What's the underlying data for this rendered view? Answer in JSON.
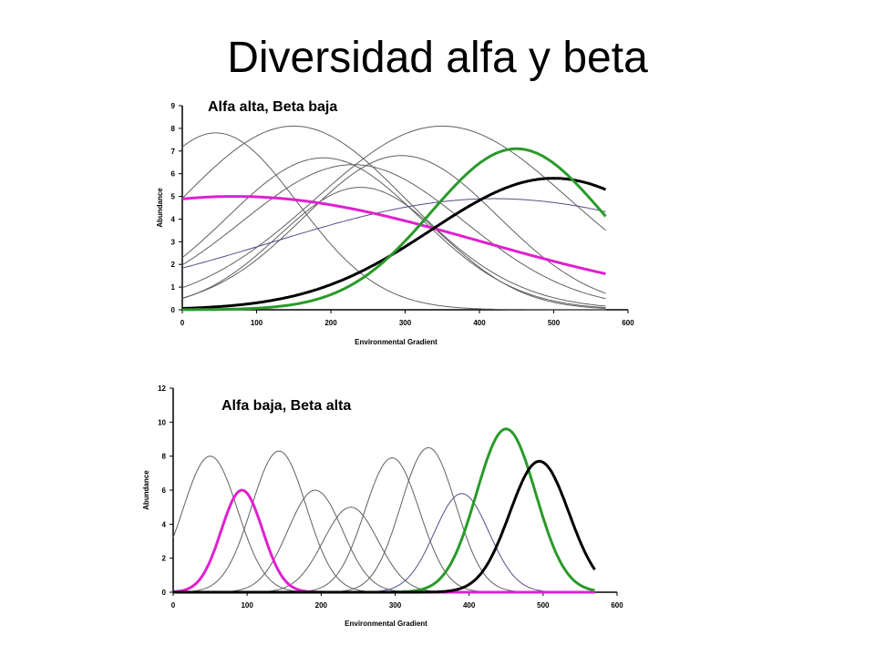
{
  "page": {
    "title": "Diversidad alfa y beta"
  },
  "chart_data": [
    {
      "type": "line",
      "annotation": "Alfa alta, Beta baja",
      "xlabel": "Environmental Gradient",
      "ylabel": "Abundance",
      "xlim": [
        0,
        600
      ],
      "ylim": [
        0,
        9
      ],
      "xticks": [
        "0",
        "100",
        "200",
        "300",
        "400",
        "500",
        "600"
      ],
      "yticks": [
        "0",
        "1",
        "2",
        "3",
        "4",
        "5",
        "6",
        "7",
        "8",
        "9"
      ],
      "grid": false,
      "series": [
        {
          "peak_x": 45,
          "peak_y": 7.8,
          "sd": 110,
          "color": "#606060",
          "emphasis": false
        },
        {
          "peak_x": 150,
          "peak_y": 8.1,
          "sd": 150,
          "color": "#606060",
          "emphasis": false
        },
        {
          "peak_x": 190,
          "peak_y": 6.7,
          "sd": 130,
          "color": "#606060",
          "emphasis": false
        },
        {
          "peak_x": 230,
          "peak_y": 6.4,
          "sd": 150,
          "color": "#606060",
          "emphasis": false
        },
        {
          "peak_x": 240,
          "peak_y": 5.4,
          "sd": 110,
          "color": "#606060",
          "emphasis": false
        },
        {
          "peak_x": 295,
          "peak_y": 6.8,
          "sd": 130,
          "color": "#606060",
          "emphasis": false
        },
        {
          "peak_x": 350,
          "peak_y": 8.1,
          "sd": 170,
          "color": "#606060",
          "emphasis": false
        },
        {
          "peak_x": 420,
          "peak_y": 4.9,
          "sd": 300,
          "color": "#5a4a8a",
          "emphasis": false
        },
        {
          "peak_x": 70,
          "peak_y": 5.0,
          "sd": 330,
          "color": "#e020d0",
          "emphasis": true
        },
        {
          "peak_x": 500,
          "peak_y": 5.8,
          "sd": 165,
          "color": "#000000",
          "emphasis": true
        },
        {
          "peak_x": 450,
          "peak_y": 7.1,
          "sd": 115,
          "color": "#2a9a2a",
          "emphasis": true
        }
      ]
    },
    {
      "type": "line",
      "annotation": "Alfa baja, Beta alta",
      "xlabel": "Environmental Gradient",
      "ylabel": "Abundance",
      "xlim": [
        0,
        600
      ],
      "ylim": [
        0,
        12
      ],
      "xticks": [
        "0",
        "100",
        "200",
        "300",
        "400",
        "500",
        "600"
      ],
      "yticks": [
        "0",
        "2",
        "4",
        "6",
        "8",
        "10",
        "12"
      ],
      "grid": false,
      "series": [
        {
          "peak_x": 50,
          "peak_y": 8.0,
          "sd": 37,
          "color": "#606060",
          "emphasis": false
        },
        {
          "peak_x": 143,
          "peak_y": 8.3,
          "sd": 37,
          "color": "#606060",
          "emphasis": false
        },
        {
          "peak_x": 192,
          "peak_y": 6.0,
          "sd": 37,
          "color": "#606060",
          "emphasis": false
        },
        {
          "peak_x": 240,
          "peak_y": 5.0,
          "sd": 37,
          "color": "#606060",
          "emphasis": false
        },
        {
          "peak_x": 296,
          "peak_y": 7.9,
          "sd": 37,
          "color": "#606060",
          "emphasis": false
        },
        {
          "peak_x": 345,
          "peak_y": 8.5,
          "sd": 37,
          "color": "#606060",
          "emphasis": false
        },
        {
          "peak_x": 390,
          "peak_y": 5.8,
          "sd": 37,
          "color": "#5a4a8a",
          "emphasis": false
        },
        {
          "peak_x": 93,
          "peak_y": 6.0,
          "sd": 28,
          "color": "#e020d0",
          "emphasis": true
        },
        {
          "peak_x": 450,
          "peak_y": 9.6,
          "sd": 40,
          "color": "#2a9a2a",
          "emphasis": true
        },
        {
          "peak_x": 495,
          "peak_y": 7.7,
          "sd": 40,
          "color": "#000000",
          "emphasis": true
        }
      ]
    }
  ]
}
